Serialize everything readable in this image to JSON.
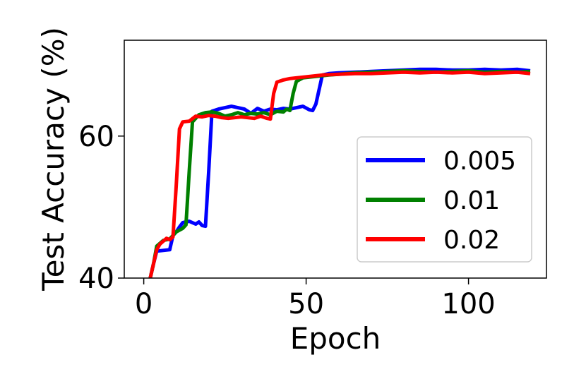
{
  "chart_data": {
    "type": "line",
    "xlabel": "Epoch",
    "ylabel": "Test Accuracy (%)",
    "xlim": [
      -6,
      124
    ],
    "ylim": [
      40,
      73.5
    ],
    "xticks": [
      0,
      50,
      100
    ],
    "yticks": [
      40,
      60
    ],
    "grid": false,
    "legend_position": "lower-right",
    "series": [
      {
        "name": "0.005",
        "color": "#0000ff",
        "points": [
          [
            2,
            40
          ],
          [
            3,
            42
          ],
          [
            4,
            43.8
          ],
          [
            6,
            43.9
          ],
          [
            8,
            44.0
          ],
          [
            9,
            46.0
          ],
          [
            10,
            46.5
          ],
          [
            11,
            47.2
          ],
          [
            12,
            47.8
          ],
          [
            14,
            48.0
          ],
          [
            16,
            47.6
          ],
          [
            17,
            47.9
          ],
          [
            18,
            47.4
          ],
          [
            19,
            47.3
          ],
          [
            20,
            55
          ],
          [
            21,
            63.5
          ],
          [
            23,
            63.8
          ],
          [
            25,
            64.0
          ],
          [
            27,
            64.2
          ],
          [
            29,
            64.0
          ],
          [
            31,
            63.8
          ],
          [
            33,
            63.2
          ],
          [
            35,
            63.9
          ],
          [
            37,
            63.5
          ],
          [
            39,
            63.8
          ],
          [
            41,
            63.7
          ],
          [
            43,
            63.9
          ],
          [
            45,
            63.8
          ],
          [
            47,
            64.0
          ],
          [
            49,
            64.2
          ],
          [
            51,
            63.7
          ],
          [
            52,
            63.6
          ],
          [
            53,
            64.5
          ],
          [
            55,
            68.6
          ],
          [
            57,
            68.8
          ],
          [
            60,
            68.9
          ],
          [
            65,
            69.0
          ],
          [
            70,
            69.1
          ],
          [
            75,
            69.2
          ],
          [
            80,
            69.3
          ],
          [
            85,
            69.4
          ],
          [
            90,
            69.4
          ],
          [
            95,
            69.3
          ],
          [
            100,
            69.3
          ],
          [
            105,
            69.4
          ],
          [
            110,
            69.3
          ],
          [
            115,
            69.4
          ],
          [
            119,
            69.2
          ]
        ]
      },
      {
        "name": "0.01",
        "color": "#008000",
        "points": [
          [
            2,
            40
          ],
          [
            3,
            42
          ],
          [
            4,
            44.5
          ],
          [
            6,
            45.3
          ],
          [
            8,
            45.5
          ],
          [
            10,
            46.5
          ],
          [
            12,
            47.0
          ],
          [
            13,
            47.5
          ],
          [
            14,
            55
          ],
          [
            15,
            62.0
          ],
          [
            17,
            63.0
          ],
          [
            19,
            63.3
          ],
          [
            21,
            63.4
          ],
          [
            23,
            63.2
          ],
          [
            25,
            62.8
          ],
          [
            27,
            63.0
          ],
          [
            29,
            63.3
          ],
          [
            31,
            63.0
          ],
          [
            33,
            63.2
          ],
          [
            35,
            63.1
          ],
          [
            37,
            63.3
          ],
          [
            39,
            63.0
          ],
          [
            41,
            63.5
          ],
          [
            43,
            63.4
          ],
          [
            44,
            63.8
          ],
          [
            45,
            63.6
          ],
          [
            46,
            66.0
          ],
          [
            47,
            67.7
          ],
          [
            49,
            68.2
          ],
          [
            51,
            68.3
          ],
          [
            53,
            68.4
          ],
          [
            55,
            68.5
          ],
          [
            57,
            68.6
          ],
          [
            60,
            68.7
          ],
          [
            65,
            68.9
          ],
          [
            70,
            69.0
          ],
          [
            75,
            69.1
          ],
          [
            80,
            69.2
          ],
          [
            85,
            69.1
          ],
          [
            90,
            69.0
          ],
          [
            95,
            69.1
          ],
          [
            100,
            69.2
          ],
          [
            105,
            69.0
          ],
          [
            110,
            69.1
          ],
          [
            115,
            69.0
          ],
          [
            119,
            69.1
          ]
        ]
      },
      {
        "name": "0.02",
        "color": "#ff0000",
        "points": [
          [
            2,
            40
          ],
          [
            3,
            42
          ],
          [
            4,
            44.0
          ],
          [
            5,
            44.8
          ],
          [
            6,
            45.2
          ],
          [
            7,
            45.6
          ],
          [
            8,
            45.4
          ],
          [
            9,
            45.8
          ],
          [
            10,
            53
          ],
          [
            11,
            61.0
          ],
          [
            12,
            62.0
          ],
          [
            14,
            62.1
          ],
          [
            16,
            62.8
          ],
          [
            18,
            62.7
          ],
          [
            20,
            62.9
          ],
          [
            22,
            62.8
          ],
          [
            24,
            62.6
          ],
          [
            26,
            62.5
          ],
          [
            28,
            62.6
          ],
          [
            30,
            62.7
          ],
          [
            32,
            62.6
          ],
          [
            34,
            62.5
          ],
          [
            36,
            62.8
          ],
          [
            38,
            62.5
          ],
          [
            39,
            62.4
          ],
          [
            40,
            66.0
          ],
          [
            41,
            67.6
          ],
          [
            43,
            67.9
          ],
          [
            45,
            68.1
          ],
          [
            47,
            68.2
          ],
          [
            49,
            68.3
          ],
          [
            51,
            68.4
          ],
          [
            53,
            68.5
          ],
          [
            55,
            68.6
          ],
          [
            60,
            68.7
          ],
          [
            65,
            68.8
          ],
          [
            70,
            68.8
          ],
          [
            75,
            68.9
          ],
          [
            80,
            69.0
          ],
          [
            85,
            68.9
          ],
          [
            90,
            69.0
          ],
          [
            95,
            68.9
          ],
          [
            100,
            69.0
          ],
          [
            105,
            68.8
          ],
          [
            110,
            68.9
          ],
          [
            115,
            69.0
          ],
          [
            119,
            68.8
          ]
        ]
      }
    ]
  }
}
